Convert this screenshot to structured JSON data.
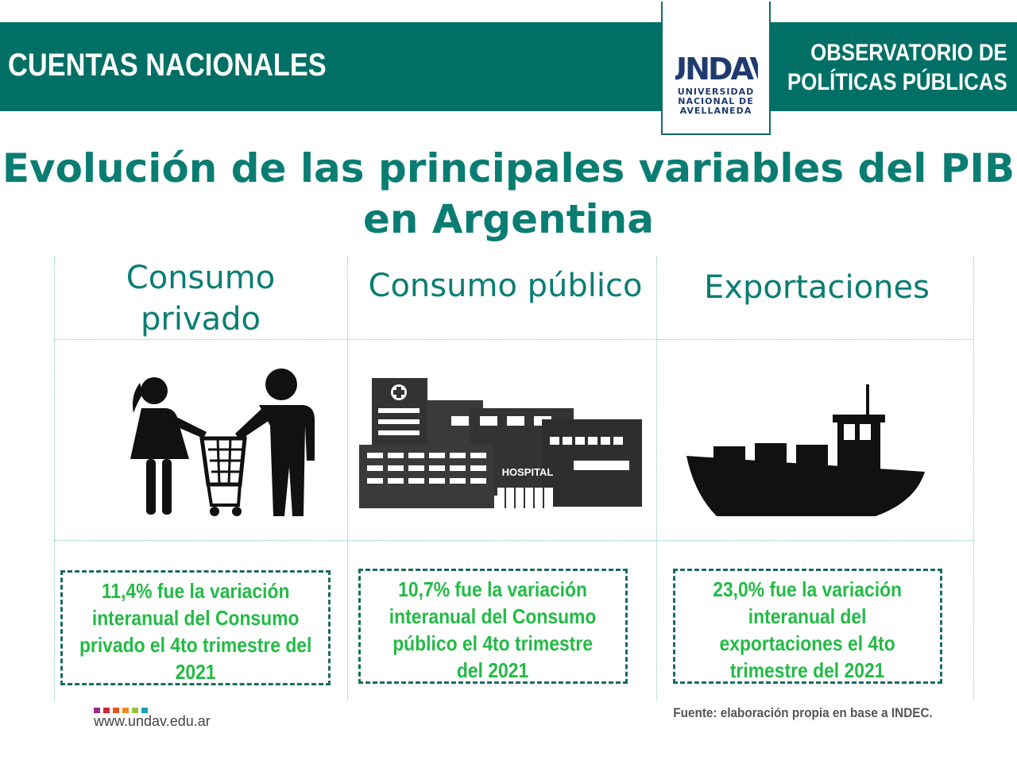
{
  "header": {
    "left_title": "CUENTAS NACIONALES",
    "right_title_line1": "OBSERVATORIO DE",
    "right_title_line2": "POLÍTICAS PÚBLICAS",
    "color": "#007066"
  },
  "logo": {
    "mark": "UNDAV",
    "line1": "UNIVERSIDAD",
    "line2": "NACIONAL DE",
    "line3": "AVELLANEDA"
  },
  "title": {
    "line1": "Evolución de las principales variables del PIB",
    "line2": "en  Argentina"
  },
  "columns": [
    {
      "heading_line1": "Consumo",
      "heading_line2": "privado",
      "icon": "shopping-couple-icon",
      "stat_lines": [
        "11,4% fue la variación",
        "interanual del Consumo",
        "privado el 4to trimestre del",
        "2021"
      ]
    },
    {
      "heading_line1": "Consumo público",
      "heading_line2": "",
      "icon": "hospital-icon",
      "icon_label": "HOSPITAL",
      "stat_lines": [
        "10,7% fue la variación",
        "interanual del Consumo",
        "público el 4to trimestre",
        "del 2021"
      ]
    },
    {
      "heading_line1": "Exportaciones",
      "heading_line2": "",
      "icon": "cargo-ship-icon",
      "stat_lines": [
        "23,0% fue la variación",
        "interanual del",
        "exportaciones el 4to",
        "trimestre del 2021"
      ]
    }
  ],
  "footer": {
    "url": "www.undav.edu.ar",
    "source": "Fuente: elaboración propia en base a INDEC.",
    "dot_colors": [
      "#9c2a8a",
      "#d3262f",
      "#e5531f",
      "#f08a1c",
      "#9bbf3a",
      "#1aa0b8"
    ]
  },
  "accent_color": "#0a7d73",
  "stat_color": "#22bb45"
}
